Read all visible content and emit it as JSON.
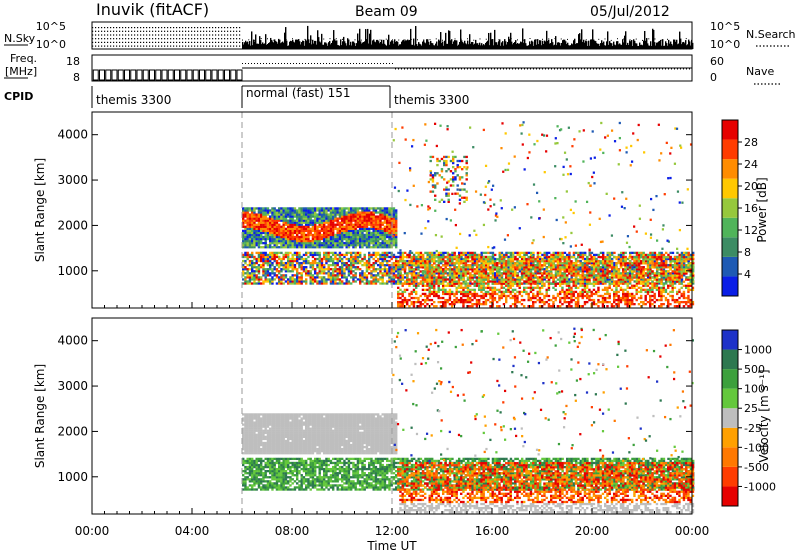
{
  "header": {
    "station": "Inuvik (fitACF)",
    "beam": "Beam 09",
    "date": "05/Jul/2012"
  },
  "summary_panels": {
    "nsky_label": "N.Sky",
    "nsky_ticks": [
      "10^5",
      "10^0"
    ],
    "nsearch_label": "N.Search",
    "freq_label": "Freq.",
    "freq_unit": "[MHz]",
    "freq_ticks": [
      "18",
      "8"
    ],
    "nave_label": "Nave",
    "nave_ticks": [
      "60",
      "0"
    ],
    "cpid_label": "CPID",
    "cpid_segments": [
      {
        "label": "themis 3300",
        "start_hour": 0,
        "end_hour": 6
      },
      {
        "label": "normal (fast) 151",
        "start_hour": 6,
        "end_hour": 12
      },
      {
        "label": "themis 3300",
        "start_hour": 12,
        "end_hour": 24
      }
    ]
  },
  "chart_data": [
    {
      "type": "heatmap",
      "panel": "power",
      "xlabel": "",
      "ylabel": "Slant Range [km]",
      "xlim_hours": [
        0,
        24
      ],
      "ylim": [
        180,
        4500
      ],
      "yticks": [
        "4000",
        "3000",
        "2000",
        "1000"
      ],
      "colorbar_label": "Power [dB]",
      "colorbar_ticks": [
        "28",
        "24",
        "20",
        "16",
        "12",
        "8",
        "4"
      ],
      "colormap": [
        "#0a1ee6",
        "#1e5ab4",
        "#3c8c64",
        "#50b45a",
        "#96c83c",
        "#ffc800",
        "#ff8c00",
        "#ff3c00",
        "#e60000"
      ],
      "echo_bands": [
        {
          "start_hour": 6.0,
          "end_hour": 12.2,
          "range_low": 1500,
          "range_high": 2400,
          "level": "high"
        },
        {
          "start_hour": 6.0,
          "end_hour": 24.0,
          "range_low": 700,
          "range_high": 1400,
          "level": "mixed"
        },
        {
          "start_hour": 12.2,
          "end_hour": 24.0,
          "range_low": 200,
          "range_high": 1300,
          "level": "high"
        },
        {
          "start_hour": 13.5,
          "end_hour": 15.0,
          "range_low": 2500,
          "range_high": 3500,
          "level": "mixed"
        }
      ]
    },
    {
      "type": "heatmap",
      "panel": "velocity",
      "xlabel": "Time UT",
      "ylabel": "Slant Range [km]",
      "xlim_hours": [
        0,
        24
      ],
      "ylim": [
        180,
        4500
      ],
      "yticks": [
        "4000",
        "3000",
        "2000",
        "1000"
      ],
      "xticks": [
        "00:00",
        "04:00",
        "08:00",
        "12:00",
        "16:00",
        "20:00",
        "00:00"
      ],
      "colorbar_label": "Velocity [m s⁻¹]",
      "colorbar_ticks": [
        "1000",
        "500",
        "100",
        "25",
        "-25",
        "-100",
        "-500",
        "-1000"
      ],
      "colormap": [
        "#1e32c8",
        "#2d7850",
        "#3ca03c",
        "#64c83c",
        "#bebebe",
        "#ffa000",
        "#ff7800",
        "#ff3c00",
        "#e60000"
      ],
      "echo_bands": [
        {
          "start_hour": 6.0,
          "end_hour": 12.2,
          "range_low": 1500,
          "range_high": 2400,
          "level": "ground"
        },
        {
          "start_hour": 6.0,
          "end_hour": 24.0,
          "range_low": 700,
          "range_high": 1400,
          "level": "mixed"
        },
        {
          "start_hour": 12.2,
          "end_hour": 24.0,
          "range_low": 200,
          "range_high": 1300,
          "level": "negative"
        }
      ]
    }
  ]
}
